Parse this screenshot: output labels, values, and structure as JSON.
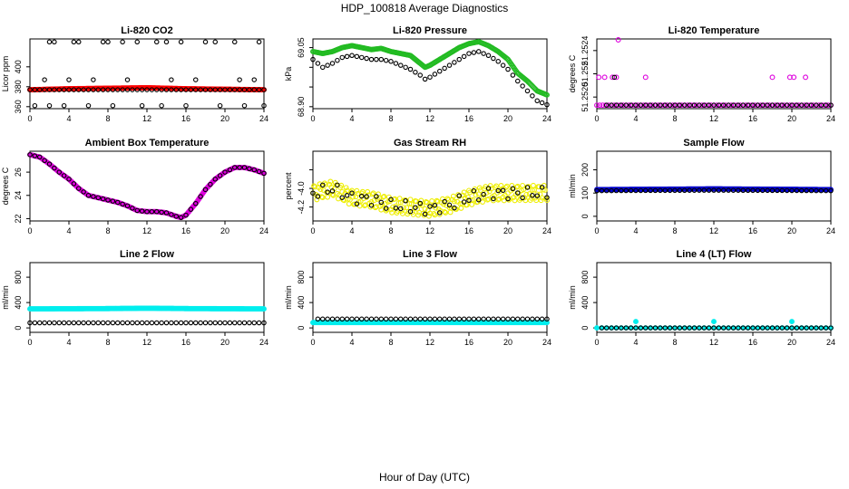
{
  "page": {
    "title": "HDP_100818  Average Diagnostics",
    "xlabel": "Hour of Day (UTC)"
  },
  "chart_data": [
    {
      "type": "scatter",
      "title": "Li-820 CO2",
      "ylabel": "Licor ppm",
      "xlim": [
        0,
        24
      ],
      "ylim": [
        358,
        428
      ],
      "xticks": [
        0,
        4,
        8,
        12,
        16,
        20,
        24
      ],
      "yticks": [
        360,
        380,
        400
      ],
      "series": [
        {
          "role": "primary",
          "color": "#ff0000",
          "filled": true,
          "step": 0.1,
          "x": [
            0,
            4,
            8,
            12,
            16,
            20,
            24
          ],
          "y": [
            377,
            378,
            378.5,
            379,
            378,
            377.5,
            377
          ]
        },
        {
          "role": "overlay",
          "color": "#000000",
          "filled": false,
          "step": 0.5,
          "x": [
            0,
            24
          ],
          "y": [
            377,
            377
          ],
          "outliers": [
            [
              2.0,
              425
            ],
            [
              2.5,
              425
            ],
            [
              4.5,
              425
            ],
            [
              5.0,
              425
            ],
            [
              7.5,
              425
            ],
            [
              8.0,
              425
            ],
            [
              9.5,
              425
            ],
            [
              11.0,
              425
            ],
            [
              13.0,
              425
            ],
            [
              14.0,
              425
            ],
            [
              15.5,
              425
            ],
            [
              18.0,
              425
            ],
            [
              19.0,
              425
            ],
            [
              21.0,
              425
            ],
            [
              23.5,
              425
            ],
            [
              0.5,
              361
            ],
            [
              2.0,
              361
            ],
            [
              3.5,
              361
            ],
            [
              6.0,
              361
            ],
            [
              8.5,
              361
            ],
            [
              11.5,
              361
            ],
            [
              13.5,
              361
            ],
            [
              16.0,
              361
            ],
            [
              19.5,
              361
            ],
            [
              22.0,
              361
            ],
            [
              24.0,
              361
            ],
            [
              1.5,
              387
            ],
            [
              4.0,
              387
            ],
            [
              6.5,
              387
            ],
            [
              10.0,
              387
            ],
            [
              14.5,
              387
            ],
            [
              17.0,
              387
            ],
            [
              21.5,
              387
            ],
            [
              23.0,
              387
            ]
          ]
        }
      ]
    },
    {
      "type": "scatter",
      "title": "Li-820 Pressure",
      "ylabel": "kPa",
      "xlim": [
        0,
        24
      ],
      "ylim": [
        68.895,
        69.072
      ],
      "xticks": [
        0,
        4,
        8,
        12,
        16,
        20,
        24
      ],
      "yticks": [
        68.9,
        68.95,
        69.0,
        69.05
      ],
      "ytick_labels": [
        "68.90",
        "",
        "",
        "69.05"
      ],
      "series": [
        {
          "role": "primary",
          "color": "#22bb22",
          "filled": false,
          "step": 0.1,
          "x": [
            0,
            1,
            2,
            3,
            4,
            5,
            6,
            7,
            8,
            9,
            10,
            11,
            11.5,
            12,
            13,
            14,
            15,
            16,
            17,
            18,
            19,
            20,
            21,
            22,
            23,
            24
          ],
          "y": [
            69.04,
            69.035,
            69.04,
            69.05,
            69.055,
            69.05,
            69.045,
            69.048,
            69.04,
            69.035,
            69.03,
            69.01,
            69.0,
            69.005,
            69.02,
            69.035,
            69.05,
            69.06,
            69.065,
            69.055,
            69.04,
            69.02,
            68.985,
            68.965,
            68.94,
            68.93
          ]
        },
        {
          "role": "overlay",
          "color": "#000000",
          "filled": false,
          "step": 0.5,
          "x": [
            0,
            1,
            2,
            3,
            4,
            5,
            6,
            7,
            8,
            9,
            10,
            11,
            11.5,
            12,
            13,
            14,
            15,
            16,
            17,
            18,
            19,
            20,
            21,
            22,
            23,
            24
          ],
          "y": [
            69.02,
            69.0,
            69.01,
            69.025,
            69.03,
            69.025,
            69.02,
            69.02,
            69.015,
            69.005,
            68.995,
            68.98,
            68.97,
            68.975,
            68.99,
            69.005,
            69.02,
            69.035,
            69.04,
            69.03,
            69.015,
            68.995,
            68.965,
            68.94,
            68.915,
            68.905
          ]
        }
      ]
    },
    {
      "type": "scatter",
      "title": "Li-820 Temperature",
      "ylabel": "degrees C",
      "xlim": [
        0,
        24
      ],
      "ylim": [
        51.2519,
        51.2525
      ],
      "xticks": [
        0,
        4,
        8,
        12,
        16,
        20,
        24
      ],
      "yticks": [
        51.252,
        51.2522,
        51.2524
      ],
      "ytick_labels": [
        "51.2520",
        "51.252",
        "51.2524"
      ],
      "series": [
        {
          "role": "primary",
          "color": "#dd00dd",
          "filled": false,
          "step": 0.3,
          "x": [
            0,
            24
          ],
          "y": [
            51.25193,
            51.25193
          ],
          "outliers": [
            [
              0.2,
              51.25217
            ],
            [
              0.8,
              51.25217
            ],
            [
              1.6,
              51.25217
            ],
            [
              2.0,
              51.25217
            ],
            [
              2.2,
              51.2525
            ],
            [
              5.0,
              51.25217
            ],
            [
              18.0,
              51.25217
            ],
            [
              19.8,
              51.25217
            ],
            [
              20.2,
              51.25217
            ],
            [
              21.4,
              51.25217
            ]
          ]
        },
        {
          "role": "overlay",
          "color": "#000000",
          "filled": false,
          "step": 0.5,
          "x": [
            1,
            24
          ],
          "y": [
            51.25193,
            51.25193
          ],
          "outliers": [
            [
              1.8,
              51.25217
            ]
          ]
        }
      ]
    },
    {
      "type": "scatter",
      "title": "Ambient Box Temperature",
      "ylabel": "degrees C",
      "xlim": [
        0,
        24
      ],
      "ylim": [
        21.8,
        27.8
      ],
      "xticks": [
        0,
        4,
        8,
        12,
        16,
        20,
        24
      ],
      "yticks": [
        22,
        24,
        26
      ],
      "series": [
        {
          "role": "primary",
          "color": "#dd00dd",
          "filled": true,
          "step": 0.1,
          "x": [
            0,
            1,
            2,
            3,
            4,
            5,
            6,
            7,
            8,
            9,
            10,
            11,
            12,
            13,
            14,
            15,
            15.5,
            16,
            17,
            18,
            19,
            20,
            21,
            22,
            23,
            24
          ],
          "y": [
            27.5,
            27.3,
            26.7,
            26.0,
            25.4,
            24.6,
            24.0,
            23.8,
            23.6,
            23.4,
            23.1,
            22.7,
            22.6,
            22.6,
            22.5,
            22.2,
            22.1,
            22.3,
            23.3,
            24.5,
            25.4,
            26.0,
            26.4,
            26.4,
            26.2,
            25.9
          ]
        },
        {
          "role": "overlay",
          "color": "#000000",
          "filled": false,
          "step": 0.5,
          "x": [
            0,
            1,
            2,
            3,
            4,
            5,
            6,
            7,
            8,
            9,
            10,
            11,
            12,
            13,
            14,
            15,
            15.5,
            16,
            17,
            18,
            19,
            20,
            21,
            22,
            23,
            24
          ],
          "y": [
            27.5,
            27.3,
            26.7,
            26.0,
            25.4,
            24.6,
            24.0,
            23.8,
            23.6,
            23.4,
            23.1,
            22.7,
            22.6,
            22.6,
            22.5,
            22.2,
            22.1,
            22.3,
            23.3,
            24.5,
            25.4,
            26.0,
            26.4,
            26.4,
            26.2,
            25.9
          ]
        }
      ]
    },
    {
      "type": "scatter",
      "title": "Gas Stream RH",
      "ylabel": "percent",
      "xlim": [
        0,
        24
      ],
      "ylim": [
        -4.35,
        -3.6
      ],
      "xticks": [
        0,
        4,
        8,
        12,
        16,
        20,
        24
      ],
      "yticks": [
        -4.2,
        -4.0,
        -3.8
      ],
      "ytick_labels": [
        "-4.2",
        "-4.0",
        ""
      ],
      "series": [
        {
          "role": "primary",
          "color": "#eeee00",
          "filled": false,
          "step": 0.1,
          "jitter": 0.09,
          "x": [
            0,
            2,
            4,
            6,
            8,
            10,
            12,
            14,
            16,
            18,
            20,
            22,
            24
          ],
          "y": [
            -4.05,
            -4.0,
            -4.1,
            -4.12,
            -4.18,
            -4.2,
            -4.22,
            -4.18,
            -4.1,
            -4.05,
            -4.05,
            -4.05,
            -4.05
          ]
        },
        {
          "role": "overlay",
          "color": "#000000",
          "filled": false,
          "step": 0.5,
          "jitter": 0.07,
          "x": [
            0,
            2,
            4,
            6,
            8,
            10,
            12,
            14,
            16,
            18,
            20,
            22,
            24
          ],
          "y": [
            -4.05,
            -4.0,
            -4.1,
            -4.12,
            -4.18,
            -4.2,
            -4.22,
            -4.18,
            -4.1,
            -4.05,
            -4.05,
            -4.05,
            -4.05
          ]
        }
      ]
    },
    {
      "type": "scatter",
      "title": "Sample Flow",
      "ylabel": "ml/min",
      "xlim": [
        0,
        24
      ],
      "ylim": [
        -20,
        280
      ],
      "xticks": [
        0,
        4,
        8,
        12,
        16,
        20,
        24
      ],
      "yticks": [
        0,
        100,
        200
      ],
      "series": [
        {
          "role": "primary",
          "color": "#0000cc",
          "filled": true,
          "step": 0.1,
          "x": [
            0,
            12,
            24
          ],
          "y": [
            115,
            118,
            115
          ]
        },
        {
          "role": "overlay",
          "color": "#000000",
          "filled": false,
          "step": 0.5,
          "x": [
            0,
            12,
            24
          ],
          "y": [
            110,
            112,
            110
          ]
        }
      ]
    },
    {
      "type": "scatter",
      "title": "Line 2 Flow",
      "ylabel": "ml/min",
      "xlim": [
        0,
        24
      ],
      "ylim": [
        -70,
        1030
      ],
      "xticks": [
        0,
        4,
        8,
        12,
        16,
        20,
        24
      ],
      "yticks": [
        0,
        400,
        800
      ],
      "series": [
        {
          "role": "primary",
          "color": "#00eeee",
          "filled": true,
          "step": 0.1,
          "x": [
            0,
            8,
            12,
            16,
            24
          ],
          "y": [
            300,
            305,
            310,
            305,
            300
          ]
        },
        {
          "role": "overlay",
          "color": "#000000",
          "filled": false,
          "step": 0.5,
          "x": [
            0,
            24
          ],
          "y": [
            80,
            80
          ]
        }
      ]
    },
    {
      "type": "scatter",
      "title": "Line 3 Flow",
      "ylabel": "ml/min",
      "xlim": [
        0,
        24
      ],
      "ylim": [
        -70,
        1030
      ],
      "xticks": [
        0,
        4,
        8,
        12,
        16,
        20,
        24
      ],
      "yticks": [
        0,
        400,
        800
      ],
      "series": [
        {
          "role": "primary",
          "color": "#00eeee",
          "filled": true,
          "step": 0.1,
          "x": [
            0,
            24
          ],
          "y": [
            85,
            85
          ]
        },
        {
          "role": "overlay",
          "color": "#000000",
          "filled": false,
          "step": 0.5,
          "x": [
            0.5,
            24
          ],
          "y": [
            140,
            140
          ]
        }
      ]
    },
    {
      "type": "scatter",
      "title": "Line 4 (LT) Flow",
      "ylabel": "ml/min",
      "xlim": [
        0,
        24
      ],
      "ylim": [
        -70,
        1030
      ],
      "xticks": [
        0,
        4,
        8,
        12,
        16,
        20,
        24
      ],
      "yticks": [
        0,
        400,
        800
      ],
      "series": [
        {
          "role": "primary",
          "color": "#00eeee",
          "filled": true,
          "step": 0.5,
          "x": [
            0,
            24
          ],
          "y": [
            0,
            0
          ],
          "outliers": [
            [
              4.0,
              100
            ],
            [
              12.0,
              100
            ],
            [
              20.0,
              100
            ]
          ]
        },
        {
          "role": "overlay",
          "color": "#000000",
          "filled": false,
          "step": 0.5,
          "x": [
            0.5,
            24
          ],
          "y": [
            0,
            0
          ]
        }
      ]
    }
  ]
}
